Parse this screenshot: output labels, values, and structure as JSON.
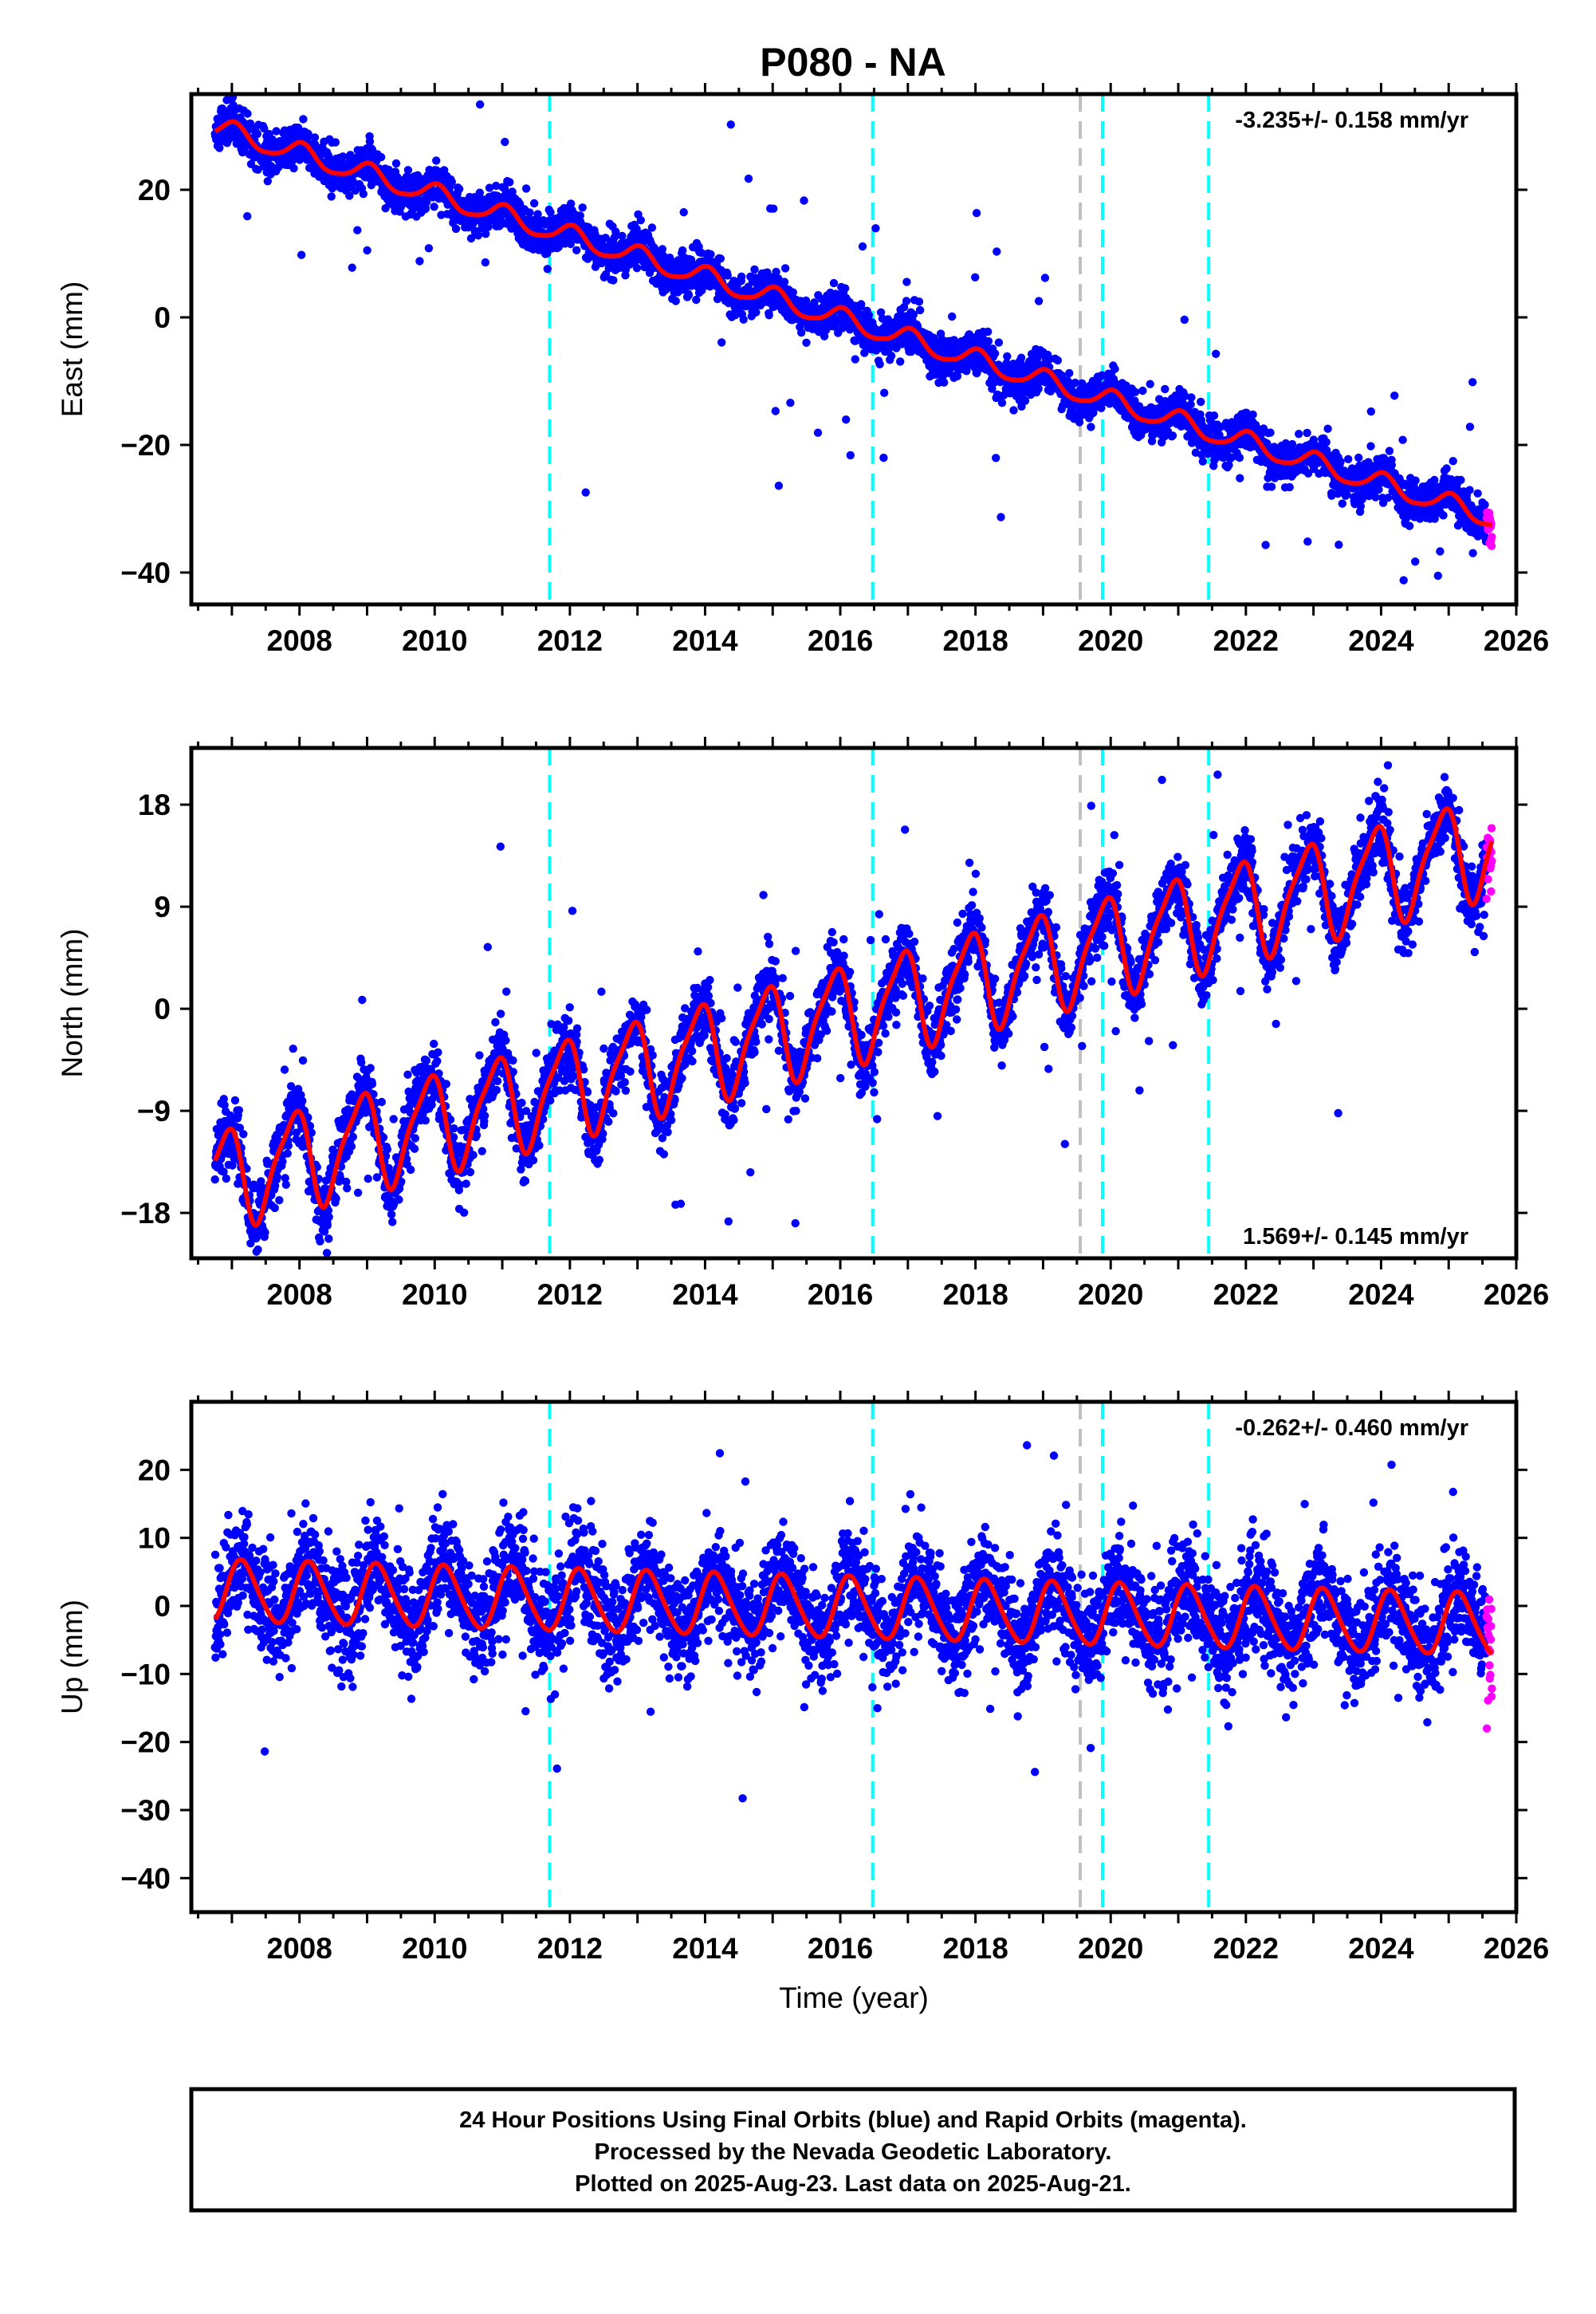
{
  "title": "P080 - NA",
  "colors": {
    "final_points": "#0000ff",
    "rapid_points": "#ff00ff",
    "model": "#ff0000",
    "equipment_change": "#00ffff",
    "other_event": "#c0c0c0",
    "frame": "#000000"
  },
  "event_lines": [
    {
      "year": 2011.7,
      "kind": "equipment_change"
    },
    {
      "year": 2016.48,
      "kind": "equipment_change"
    },
    {
      "year": 2019.55,
      "kind": "other_event"
    },
    {
      "year": 2019.88,
      "kind": "equipment_change"
    },
    {
      "year": 2021.45,
      "kind": "equipment_change"
    }
  ],
  "chart_data": [
    {
      "type": "scatter",
      "component": "east",
      "ylabel": "East (mm)",
      "xlabel": "",
      "xlim": [
        2006.4,
        2026.0
      ],
      "ylim": [
        -45,
        35
      ],
      "xticks": [
        2008,
        2010,
        2012,
        2014,
        2016,
        2018,
        2020,
        2022,
        2024,
        2026
      ],
      "yticks": [
        20,
        0,
        -20,
        -40
      ],
      "rate": "-3.235+/- 0.158 mm/yr",
      "rate_position": "top-right",
      "model": {
        "ref_year": 2015.0,
        "offset": 3.0,
        "rate_mm_yr": -3.235,
        "annual_amp": 1.6,
        "annual_phase": 1.4,
        "semiannual_amp": 0.3,
        "scatter_mm": 1.6,
        "outlier_fraction": 0.02,
        "outlier_scale": 9
      },
      "data_start": 2006.75,
      "data_end": 2025.64,
      "rapid_start": 2025.56,
      "series": [
        {
          "name": "Final Orbits",
          "color": "#0000ff"
        },
        {
          "name": "Rapid Orbits",
          "color": "#ff00ff"
        },
        {
          "name": "Model",
          "color": "#ff0000"
        }
      ]
    },
    {
      "type": "scatter",
      "component": "north",
      "ylabel": "North (mm)",
      "xlabel": "",
      "xlim": [
        2006.4,
        2026.0
      ],
      "ylim": [
        -22,
        23
      ],
      "xticks": [
        2008,
        2010,
        2012,
        2014,
        2016,
        2018,
        2020,
        2022,
        2024,
        2026
      ],
      "yticks": [
        18,
        9,
        0,
        -9,
        -18
      ],
      "rate": "1.569+/- 0.145 mm/yr",
      "rate_position": "bottom-right",
      "model": {
        "ref_year": 2015.0,
        "offset": -2.2,
        "rate_mm_yr": 1.569,
        "annual_amp": 4.2,
        "annual_phase": 2.2,
        "semiannual_amp": 1.0,
        "scatter_mm": 1.5,
        "outlier_fraction": 0.025,
        "outlier_scale": 5
      },
      "data_start": 2006.75,
      "data_end": 2025.64,
      "rapid_start": 2025.56,
      "series": [
        {
          "name": "Final Orbits",
          "color": "#0000ff"
        },
        {
          "name": "Rapid Orbits",
          "color": "#ff00ff"
        },
        {
          "name": "Model",
          "color": "#ff0000"
        }
      ]
    },
    {
      "type": "scatter",
      "component": "up",
      "ylabel": "Up (mm)",
      "xlabel": "Time (year)",
      "xlim": [
        2006.4,
        2026.0
      ],
      "ylim": [
        -45,
        30
      ],
      "xticks": [
        2008,
        2010,
        2012,
        2014,
        2016,
        2018,
        2020,
        2022,
        2024,
        2026
      ],
      "yticks": [
        20,
        10,
        0,
        -10,
        -20,
        -30,
        -40
      ],
      "rate": "-0.262+/- 0.460 mm/yr",
      "rate_position": "top-right",
      "model": {
        "ref_year": 2015.0,
        "offset": 0.0,
        "rate_mm_yr": -0.262,
        "annual_amp": 4.5,
        "annual_phase": 0.6,
        "semiannual_amp": 0.5,
        "scatter_mm": 3.8,
        "outlier_fraction": 0.015,
        "outlier_scale": 3
      },
      "data_start": 2006.75,
      "data_end": 2025.64,
      "rapid_start": 2025.56,
      "series": [
        {
          "name": "Final Orbits",
          "color": "#0000ff"
        },
        {
          "name": "Rapid Orbits",
          "color": "#ff00ff"
        },
        {
          "name": "Model",
          "color": "#ff0000"
        }
      ]
    }
  ],
  "caption": {
    "line1": "24 Hour Positions Using Final Orbits (blue) and Rapid Orbits (magenta).",
    "line2": "Processed by the Nevada Geodetic Laboratory.",
    "line3": "Plotted on 2025-Aug-23. Last data on 2025-Aug-21."
  }
}
